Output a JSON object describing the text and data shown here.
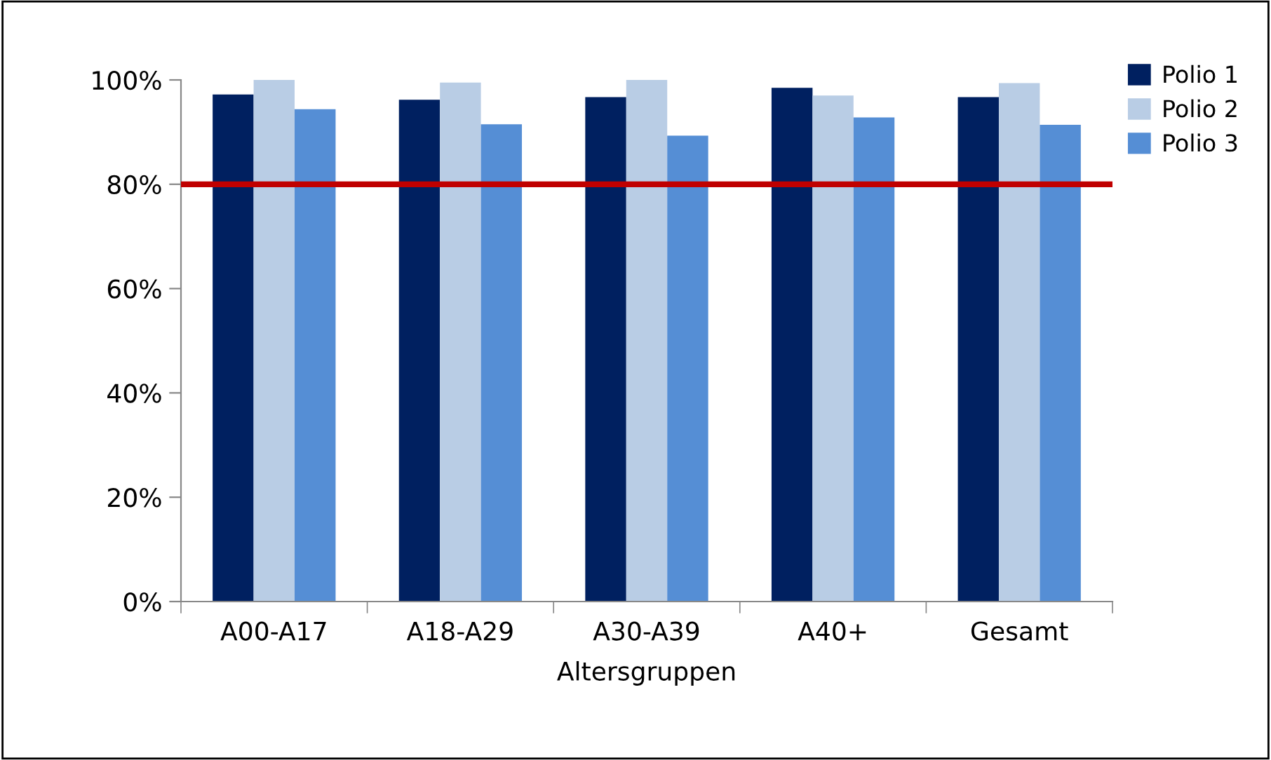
{
  "chart_data": {
    "type": "bar",
    "xlabel": "Altersgruppen",
    "categories": [
      "A00-A17",
      "A18-A29",
      "A30-A39",
      "A40+",
      "Gesamt"
    ],
    "series": [
      {
        "name": "Polio 1",
        "color": "#002060",
        "values": [
          97.2,
          96.2,
          96.7,
          98.5,
          96.7
        ]
      },
      {
        "name": "Polio 2",
        "color": "#b9cde5",
        "values": [
          100,
          99.5,
          100,
          97.0,
          99.4
        ]
      },
      {
        "name": "Polio 3",
        "color": "#558ed5",
        "values": [
          94.4,
          91.5,
          89.3,
          92.8,
          91.4
        ]
      }
    ],
    "ylim": [
      0,
      100
    ],
    "yticks": [
      {
        "value": 0,
        "label": "0%"
      },
      {
        "value": 20,
        "label": "20%"
      },
      {
        "value": 40,
        "label": "40%"
      },
      {
        "value": 60,
        "label": "60%"
      },
      {
        "value": 80,
        "label": "80%"
      },
      {
        "value": 100,
        "label": "100%"
      }
    ],
    "ref_lines": [
      {
        "axis": "y",
        "value": 80,
        "color": "#c00000"
      }
    ],
    "grid": false,
    "legend": "top right"
  }
}
